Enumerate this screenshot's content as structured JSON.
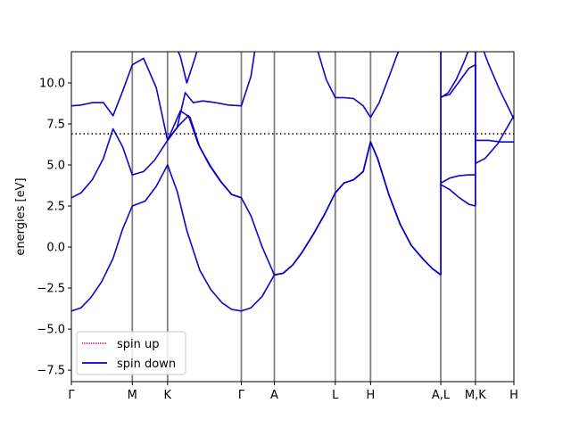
{
  "chart_data": {
    "type": "line",
    "ylabel": "energies [eV]",
    "xlabel": "",
    "ylim": [
      -8.2,
      11.9
    ],
    "xlim": [
      0,
      13.8
    ],
    "y_ticks": [
      -7.5,
      -5.0,
      -2.5,
      0.0,
      2.5,
      5.0,
      7.5,
      10.0
    ],
    "y_tick_labels": [
      "−7.5",
      "−5.0",
      "−2.5",
      "0.0",
      "2.5",
      "5.0",
      "7.5",
      "10.0"
    ],
    "k_points": [
      {
        "label": "Γ",
        "x": 0
      },
      {
        "label": "M",
        "x": 1.9
      },
      {
        "label": "K",
        "x": 3.0
      },
      {
        "label": "Γ",
        "x": 5.3
      },
      {
        "label": "A",
        "x": 6.33
      },
      {
        "label": "L",
        "x": 8.23
      },
      {
        "label": "H",
        "x": 9.33
      },
      {
        "label": "A,L",
        "x": 11.52
      },
      {
        "label": "M,K",
        "x": 12.6
      },
      {
        "label": "H",
        "x": 13.8
      }
    ],
    "fermi_level": 6.9,
    "legend": {
      "placement": "lower-left",
      "entries": [
        {
          "label": "spin up",
          "color": "#c00060",
          "style": "dotted"
        },
        {
          "label": "spin down",
          "color": "#0000cc",
          "style": "solid"
        }
      ]
    },
    "colors": {
      "spin_up": "#c00060",
      "spin_down": "#0000cc",
      "kpoint_line": "#808080",
      "fermi": "#000000"
    },
    "series": [
      {
        "segments": [
          {
            "points": [
              [
                0,
                -3.9
              ],
              [
                0.3,
                -3.7
              ],
              [
                0.6,
                -3.1
              ],
              [
                0.95,
                -2.1
              ],
              [
                1.3,
                -0.7
              ],
              [
                1.6,
                1.1
              ],
              [
                1.9,
                2.5
              ],
              [
                2.3,
                2.8
              ],
              [
                2.65,
                3.7
              ],
              [
                3.0,
                5.0
              ],
              [
                3.3,
                3.4
              ],
              [
                3.6,
                1.0
              ],
              [
                4.0,
                -1.4
              ],
              [
                4.35,
                -2.6
              ],
              [
                4.7,
                -3.4
              ],
              [
                5.0,
                -3.8
              ],
              [
                5.3,
                -3.9
              ],
              [
                5.6,
                -3.7
              ],
              [
                5.95,
                -3.0
              ],
              [
                6.33,
                -1.7
              ],
              [
                6.6,
                -1.6
              ],
              [
                6.9,
                -1.1
              ],
              [
                7.2,
                -0.3
              ],
              [
                7.55,
                0.8
              ],
              [
                7.9,
                2.0
              ],
              [
                8.23,
                3.3
              ],
              [
                8.5,
                3.9
              ],
              [
                8.8,
                4.1
              ],
              [
                9.1,
                4.6
              ],
              [
                9.33,
                6.4
              ],
              [
                9.55,
                5.4
              ],
              [
                9.9,
                3.2
              ],
              [
                10.25,
                1.4
              ],
              [
                10.6,
                0.1
              ],
              [
                10.95,
                -0.7
              ],
              [
                11.25,
                -1.3
              ],
              [
                11.52,
                -1.7
              ]
            ]
          },
          {
            "points": [
              [
                0,
                3.0
              ],
              [
                0.3,
                3.3
              ],
              [
                0.65,
                4.1
              ],
              [
                1.0,
                5.4
              ],
              [
                1.3,
                7.2
              ],
              [
                1.6,
                6.1
              ],
              [
                1.9,
                4.4
              ],
              [
                2.25,
                4.6
              ],
              [
                2.6,
                5.3
              ],
              [
                3.0,
                6.5
              ],
              [
                3.4,
                8.3
              ],
              [
                3.7,
                7.9
              ],
              [
                4.0,
                6.1
              ],
              [
                4.35,
                4.9
              ],
              [
                4.7,
                3.9
              ],
              [
                5.0,
                3.2
              ],
              [
                5.3,
                3.0
              ],
              [
                5.6,
                1.9
              ],
              [
                5.95,
                0.0
              ],
              [
                6.33,
                -1.7
              ],
              [
                6.6,
                -1.6
              ],
              [
                6.9,
                -1.1
              ],
              [
                7.2,
                -0.3
              ],
              [
                7.55,
                0.8
              ],
              [
                7.9,
                2.0
              ],
              [
                8.23,
                3.3
              ],
              [
                8.5,
                3.9
              ],
              [
                8.8,
                4.1
              ],
              [
                9.1,
                4.6
              ],
              [
                9.33,
                6.4
              ],
              [
                9.55,
                5.4
              ],
              [
                9.9,
                3.2
              ],
              [
                10.25,
                1.4
              ],
              [
                10.6,
                0.1
              ],
              [
                10.95,
                -0.7
              ],
              [
                11.25,
                -1.3
              ],
              [
                11.52,
                -1.7
              ]
            ]
          },
          {
            "points": [
              [
                0,
                8.6
              ],
              [
                0.3,
                8.65
              ],
              [
                0.65,
                8.8
              ],
              [
                1.0,
                8.8
              ],
              [
                1.3,
                8.0
              ],
              [
                1.6,
                9.5
              ],
              [
                1.9,
                11.1
              ],
              [
                2.25,
                11.5
              ],
              [
                2.65,
                9.7
              ],
              [
                3.0,
                6.5
              ],
              [
                3.3,
                7.3
              ],
              [
                3.55,
                9.4
              ],
              [
                3.8,
                8.8
              ],
              [
                4.1,
                8.9
              ],
              [
                4.5,
                8.8
              ],
              [
                4.9,
                8.65
              ],
              [
                5.3,
                8.6
              ],
              [
                5.6,
                10.4
              ],
              [
                5.8,
                13.0
              ]
            ]
          },
          {
            "points": [
              [
                3.0,
                6.5
              ],
              [
                3.35,
                7.4
              ],
              [
                3.65,
                8.0
              ],
              [
                3.95,
                6.3
              ],
              [
                4.3,
                5.0
              ],
              [
                4.65,
                4.0
              ],
              [
                5.0,
                3.2
              ],
              [
                5.3,
                3.0
              ]
            ]
          },
          {
            "points": [
              [
                3.2,
                12.5
              ],
              [
                3.4,
                11.6
              ],
              [
                3.6,
                10.0
              ],
              [
                3.85,
                11.5
              ],
              [
                4.0,
                12.5
              ]
            ]
          },
          {
            "points": [
              [
                7.6,
                12.5
              ],
              [
                7.95,
                10.2
              ],
              [
                8.23,
                9.1
              ],
              [
                8.5,
                9.1
              ],
              [
                8.8,
                9.05
              ],
              [
                9.1,
                8.6
              ],
              [
                9.33,
                7.9
              ],
              [
                9.6,
                8.8
              ],
              [
                9.95,
                10.6
              ],
              [
                10.25,
                12.2
              ],
              [
                10.4,
                13.0
              ]
            ]
          },
          {
            "points": [
              [
                11.52,
                9.1
              ],
              [
                11.75,
                9.4
              ],
              [
                12.0,
                10.2
              ],
              [
                12.25,
                11.3
              ],
              [
                12.45,
                12.3
              ]
            ]
          },
          {
            "points": [
              [
                11.52,
                9.15
              ],
              [
                11.8,
                9.3
              ],
              [
                12.1,
                10.1
              ],
              [
                12.4,
                10.9
              ],
              [
                12.6,
                11.1
              ],
              [
                12.6,
                5.1
              ],
              [
                12.9,
                5.4
              ],
              [
                13.3,
                6.3
              ],
              [
                13.8,
                8.0
              ]
            ]
          },
          {
            "points": [
              [
                11.52,
                3.9
              ],
              [
                11.8,
                4.2
              ],
              [
                12.1,
                4.35
              ],
              [
                12.4,
                4.4
              ],
              [
                12.6,
                4.4
              ]
            ]
          },
          {
            "points": [
              [
                11.52,
                3.8
              ],
              [
                11.8,
                3.5
              ],
              [
                12.1,
                3.0
              ],
              [
                12.4,
                2.6
              ],
              [
                12.6,
                2.5
              ]
            ]
          },
          {
            "points": [
              [
                12.6,
                6.5
              ],
              [
                13.0,
                6.5
              ],
              [
                13.4,
                6.4
              ],
              [
                13.8,
                6.4
              ]
            ]
          },
          {
            "points": [
              [
                12.75,
                12.5
              ],
              [
                13.0,
                11.2
              ],
              [
                13.35,
                9.6
              ],
              [
                13.8,
                7.8
              ]
            ]
          },
          {
            "points": [
              [
                11.52,
                -1.7
              ],
              [
                11.52,
                13.0
              ]
            ]
          },
          {
            "points": [
              [
                12.6,
                2.5
              ],
              [
                12.6,
                13.0
              ]
            ]
          }
        ]
      }
    ]
  }
}
